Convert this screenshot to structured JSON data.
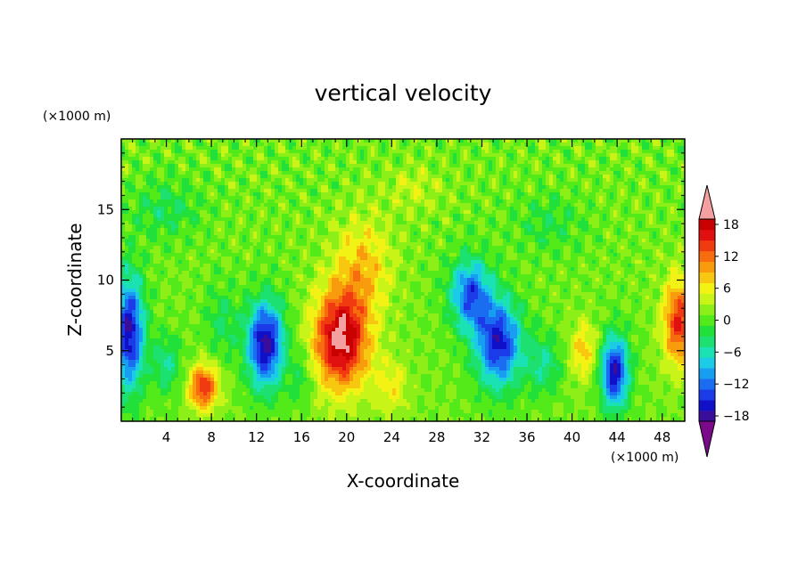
{
  "chart_data": {
    "type": "heatmap",
    "title": "vertical velocity",
    "xlabel": "X-coordinate",
    "ylabel": "Z-coordinate",
    "x_unit": "(×1000 m)",
    "y_unit": "(×1000 m)",
    "xlim": [
      0,
      50
    ],
    "ylim": [
      0,
      20
    ],
    "x_ticks": [
      4,
      8,
      12,
      16,
      20,
      24,
      28,
      32,
      36,
      40,
      44,
      48
    ],
    "y_ticks": [
      5,
      10,
      15
    ],
    "colorbar": {
      "range": [
        -21,
        21
      ],
      "tick_values": [
        18,
        12,
        6,
        0,
        -6,
        -12,
        -18
      ],
      "tick_labels": [
        "18",
        "12",
        "6",
        "0",
        "−6",
        "−12",
        "−18"
      ],
      "extend": "both",
      "colors": [
        "#7a0a8a",
        "#3a0e9a",
        "#1010c8",
        "#1c3be8",
        "#1a6cf0",
        "#189ef0",
        "#1ccbe6",
        "#1be2b2",
        "#1ce070",
        "#22e03a",
        "#52ea18",
        "#8cf018",
        "#c8f418",
        "#f2f214",
        "#f8c810",
        "#f89c0e",
        "#f66c0e",
        "#f03a10",
        "#e01010",
        "#c80000",
        "#f4a0a0"
      ]
    },
    "features": [
      {
        "x": 0.7,
        "z": 6.3,
        "w": -18.0,
        "sx": 1.3,
        "sz": 4.0
      },
      {
        "x": 7.3,
        "z": 2.4,
        "w": 14.0,
        "sx": 1.3,
        "sz": 1.6
      },
      {
        "x": 12.8,
        "z": 5.5,
        "w": -19.0,
        "sx": 1.6,
        "sz": 3.0
      },
      {
        "x": 19.5,
        "z": 5.8,
        "w": 19.0,
        "sx": 2.4,
        "sz": 3.5
      },
      {
        "x": 21.5,
        "z": 11.0,
        "w": 7.0,
        "sx": 2.5,
        "sz": 3.5
      },
      {
        "x": 31.0,
        "z": 9.0,
        "w": -14.0,
        "sx": 1.8,
        "sz": 2.5
      },
      {
        "x": 33.5,
        "z": 5.5,
        "w": -17.0,
        "sx": 2.0,
        "sz": 3.0
      },
      {
        "x": 41.0,
        "z": 5.0,
        "w": 7.0,
        "sx": 1.2,
        "sz": 2.0
      },
      {
        "x": 43.8,
        "z": 3.5,
        "w": -18.0,
        "sx": 1.2,
        "sz": 2.5
      },
      {
        "x": 49.5,
        "z": 7.0,
        "w": 14.0,
        "sx": 1.4,
        "sz": 3.0
      },
      {
        "x": 4.0,
        "z": 4.0,
        "w": -6.0,
        "sx": 1.3,
        "sz": 2.0
      },
      {
        "x": 9.0,
        "z": 7.0,
        "w": -4.0,
        "sx": 1.5,
        "sz": 2.5
      },
      {
        "x": 16.0,
        "z": 3.0,
        "w": -4.0,
        "sx": 1.0,
        "sz": 2.0
      },
      {
        "x": 24.0,
        "z": 2.5,
        "w": 5.0,
        "sx": 1.5,
        "sz": 2.0
      },
      {
        "x": 37.5,
        "z": 4.0,
        "w": -6.0,
        "sx": 1.5,
        "sz": 2.0
      },
      {
        "x": 4.0,
        "z": 15.0,
        "w": -4.0,
        "sx": 3.0,
        "sz": 2.0
      },
      {
        "x": 26.0,
        "z": 16.5,
        "w": 3.0,
        "sx": 2.5,
        "sz": 1.5
      },
      {
        "x": 38.0,
        "z": 14.0,
        "w": -3.0,
        "sx": 3.0,
        "sz": 2.0
      }
    ]
  }
}
